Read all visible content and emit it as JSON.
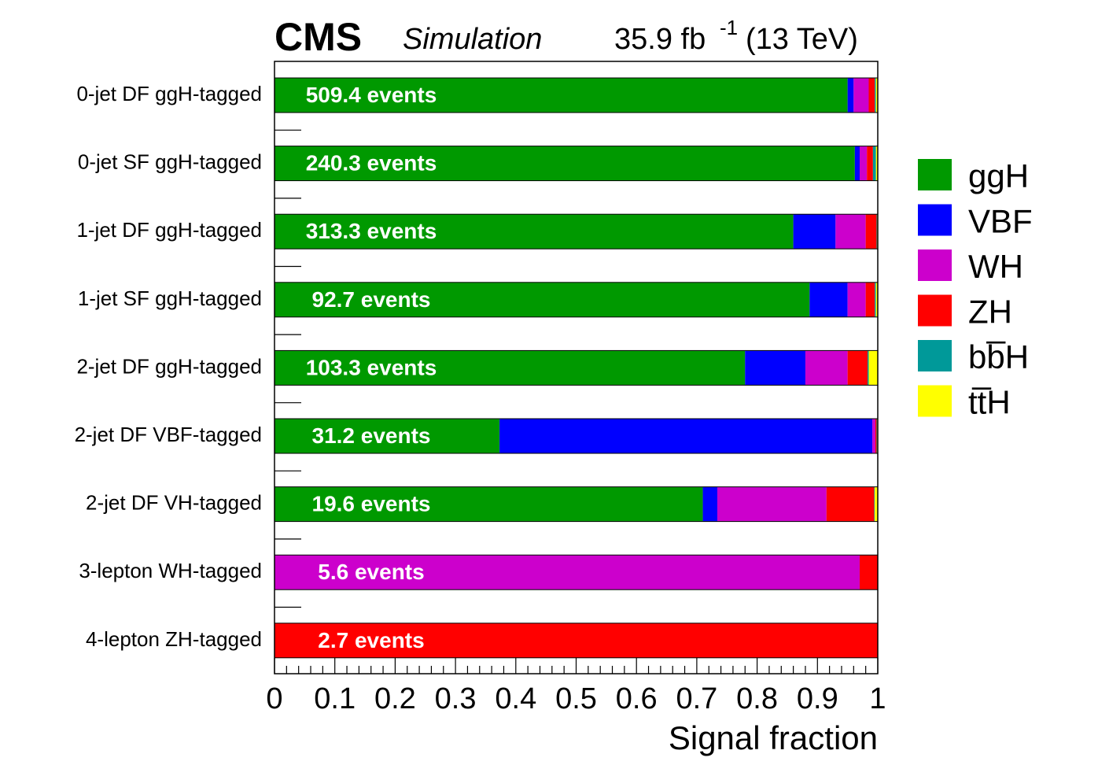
{
  "header": {
    "experiment": "CMS",
    "label": "Simulation",
    "lumi": "35.9 fb",
    "lumi_exp": "-1",
    "energy": "(13 TeV)"
  },
  "chart_data": {
    "type": "bar",
    "orientation": "horizontal",
    "stacked": true,
    "xlabel": "Signal fraction",
    "xlim": [
      0,
      1
    ],
    "xticks": [
      "0",
      "0.1",
      "0.2",
      "0.3",
      "0.4",
      "0.5",
      "0.6",
      "0.7",
      "0.8",
      "0.9",
      "1"
    ],
    "legend_position": "right",
    "categories": [
      "0-jet DF ggH-tagged",
      "0-jet SF ggH-tagged",
      "1-jet DF ggH-tagged",
      "1-jet SF ggH-tagged",
      "2-jet DF ggH-tagged",
      "2-jet DF VBF-tagged",
      "2-jet DF VH-tagged",
      "3-lepton WH-tagged",
      "4-lepton ZH-tagged"
    ],
    "event_labels": [
      "509.4 events",
      "240.3 events",
      "313.3 events",
      "92.7 events",
      "103.3 events",
      "31.2 events",
      "19.6 events",
      "5.6 events",
      "2.7 events"
    ],
    "series": [
      {
        "name": "ggH",
        "color": "#009900",
        "values": [
          0.95,
          0.962,
          0.86,
          0.887,
          0.78,
          0.373,
          0.71,
          0.0,
          0.0
        ]
      },
      {
        "name": "VBF",
        "color": "#0000ff",
        "values": [
          0.01,
          0.008,
          0.07,
          0.063,
          0.1,
          0.618,
          0.024,
          0.0,
          0.0
        ]
      },
      {
        "name": "WH",
        "color": "#cc00cc",
        "values": [
          0.025,
          0.012,
          0.05,
          0.03,
          0.07,
          0.005,
          0.181,
          0.97,
          0.0
        ]
      },
      {
        "name": "ZH",
        "color": "#ff0000",
        "values": [
          0.01,
          0.01,
          0.018,
          0.015,
          0.033,
          0.002,
          0.079,
          0.03,
          1.0
        ]
      },
      {
        "name": "bb̅H",
        "color": "#009999",
        "values": [
          0.002,
          0.005,
          0.001,
          0.002,
          0.002,
          0.001,
          0.001,
          0.0,
          0.0
        ]
      },
      {
        "name": "tt̅H",
        "color": "#ffff00",
        "values": [
          0.003,
          0.003,
          0.001,
          0.003,
          0.015,
          0.001,
          0.005,
          0.0,
          0.0
        ]
      }
    ]
  }
}
